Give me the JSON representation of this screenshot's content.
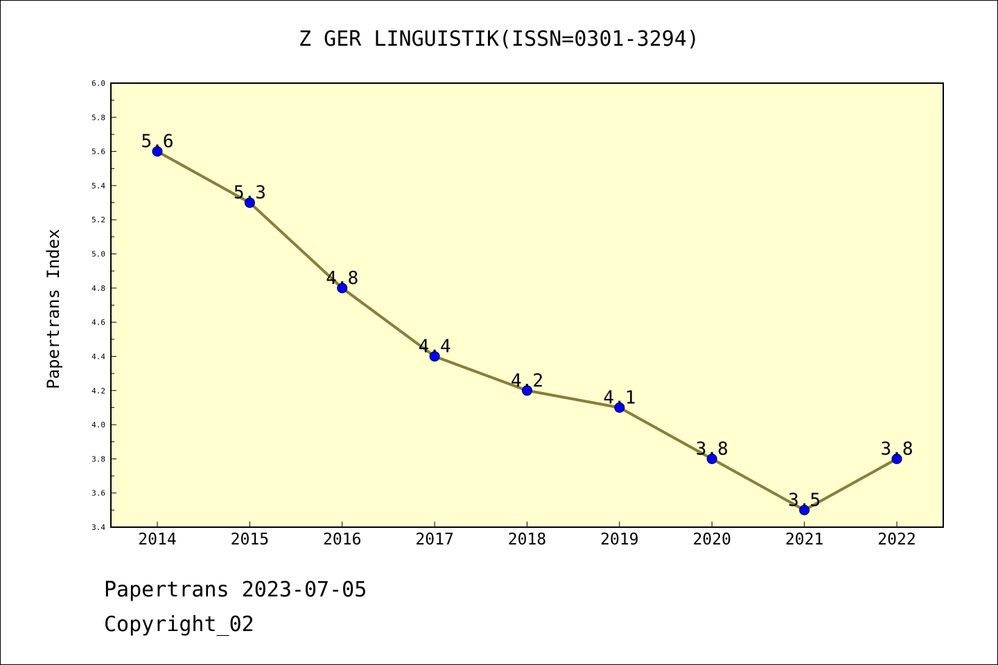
{
  "chart_data": {
    "type": "line",
    "title": "Z GER LINGUISTIK(ISSN=0301-3294)",
    "xlabel": "",
    "ylabel": "Papertrans Index",
    "categories": [
      "2014",
      "2015",
      "2016",
      "2017",
      "2018",
      "2019",
      "2020",
      "2021",
      "2022"
    ],
    "series": [
      {
        "values": [
          5.6,
          5.3,
          4.8,
          4.4,
          4.2,
          4.1,
          3.8,
          3.5,
          3.8
        ]
      }
    ],
    "data_labels": [
      "5.6",
      "5.3",
      "4.8",
      "4.4",
      "4.2",
      "4.1",
      "3.8",
      "3.5",
      "3.8"
    ],
    "ylim": [
      3.4,
      6.0
    ],
    "yticks": [
      "3.4",
      "3.6",
      "3.8",
      "4.0",
      "4.2",
      "4.4",
      "4.6",
      "4.8",
      "5.0",
      "5.2",
      "5.4",
      "5.6",
      "5.8",
      "6.0"
    ],
    "grid": false,
    "legend": "none",
    "colors": {
      "plot_background": "#ffffd0",
      "line": "#8b7d3a",
      "marker": "#0000ff"
    }
  },
  "footer": {
    "line1": "Papertrans 2023-07-05",
    "line2": "Copyright_02"
  }
}
